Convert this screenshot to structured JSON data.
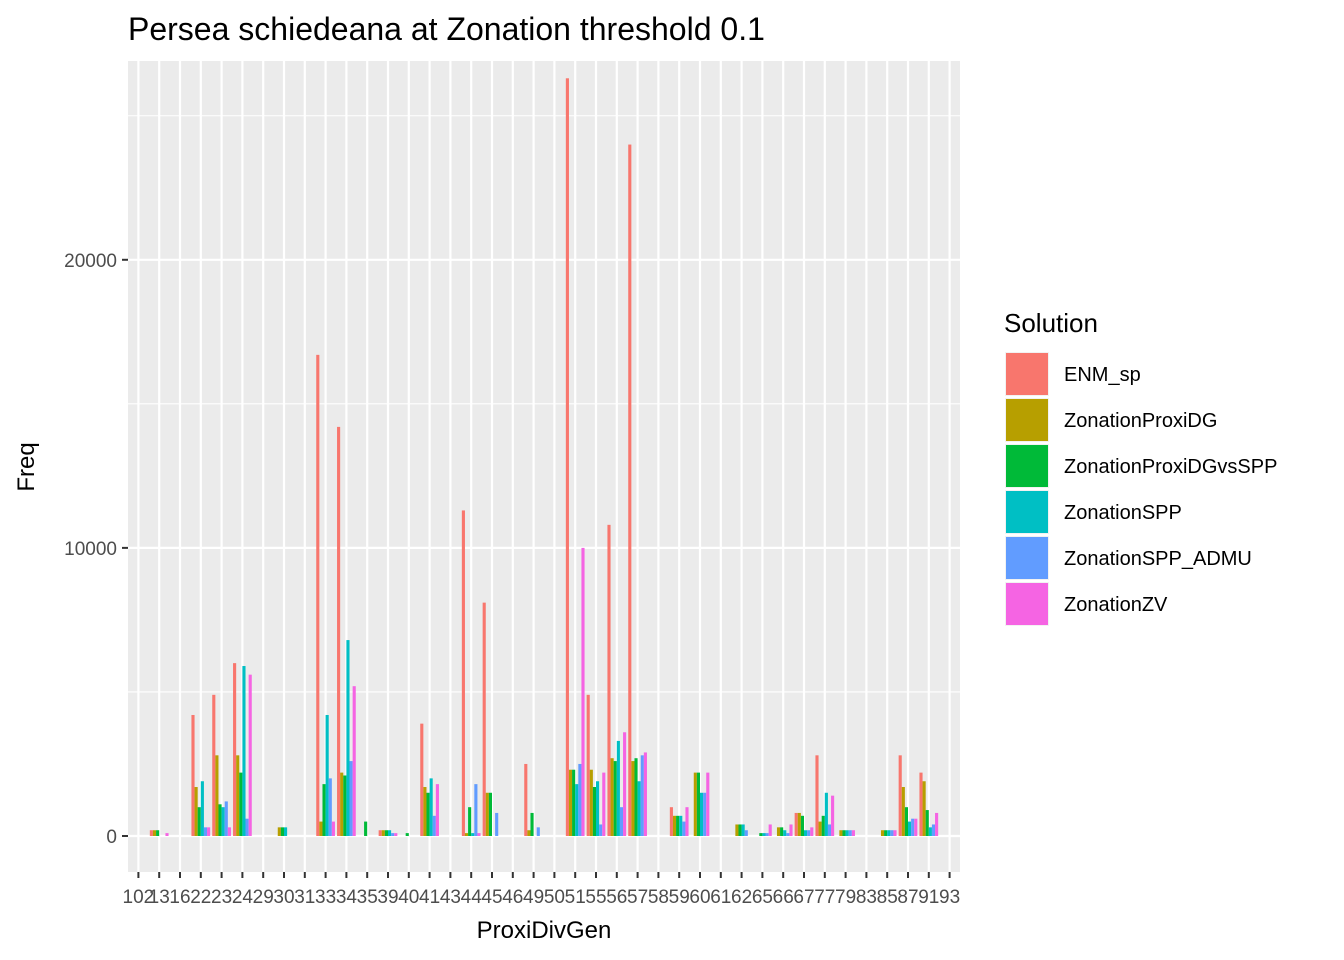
{
  "chart_data": {
    "type": "bar",
    "title": "Persea schiedeana at Zonation threshold 0.1",
    "xlabel": "ProxiDivGen",
    "ylabel": "Freq",
    "ylim": [
      -1250,
      26900
    ],
    "y_ticks": [
      0,
      10000,
      20000
    ],
    "grid": true,
    "legend_title": "Solution",
    "legend_position": "right",
    "categories": [
      "102",
      "13",
      "16",
      "22",
      "23",
      "24",
      "29",
      "30",
      "31",
      "33",
      "34",
      "35",
      "39",
      "40",
      "41",
      "43",
      "44",
      "45",
      "46",
      "49",
      "50",
      "51",
      "55",
      "56",
      "57",
      "58",
      "59",
      "60",
      "61",
      "62",
      "65",
      "66",
      "67",
      "77",
      "79",
      "83",
      "85",
      "87",
      "91",
      "93"
    ],
    "series": [
      {
        "name": "ENM_sp",
        "color": "#F8766D",
        "values": [
          0,
          200,
          0,
          4200,
          4900,
          6000,
          0,
          0,
          0,
          16700,
          14200,
          0,
          200,
          0,
          3900,
          0,
          11300,
          8100,
          0,
          2500,
          0,
          26300,
          4900,
          10800,
          24000,
          0,
          1000,
          0,
          0,
          0,
          0,
          0,
          800,
          2800,
          0,
          0,
          0,
          2800,
          2200,
          0
        ]
      },
      {
        "name": "ZonationProxiDG",
        "color": "#B79F00",
        "values": [
          0,
          200,
          0,
          1700,
          2800,
          2800,
          0,
          300,
          0,
          500,
          2200,
          0,
          200,
          0,
          1700,
          0,
          100,
          1500,
          0,
          200,
          0,
          2300,
          2300,
          2700,
          2600,
          0,
          700,
          2200,
          0,
          400,
          0,
          300,
          800,
          500,
          200,
          0,
          200,
          1700,
          1900,
          0
        ]
      },
      {
        "name": "ZonationProxiDGvsSPP",
        "color": "#00BA38",
        "values": [
          0,
          200,
          0,
          1000,
          1100,
          2200,
          0,
          300,
          0,
          1800,
          2100,
          500,
          200,
          100,
          1500,
          0,
          1000,
          1500,
          0,
          800,
          0,
          2300,
          1700,
          2600,
          2700,
          0,
          700,
          2200,
          0,
          400,
          100,
          300,
          700,
          700,
          200,
          0,
          200,
          1000,
          900,
          0
        ]
      },
      {
        "name": "ZonationSPP",
        "color": "#00BFC4",
        "values": [
          0,
          0,
          0,
          1900,
          1000,
          5900,
          0,
          300,
          0,
          4200,
          6800,
          0,
          200,
          0,
          2000,
          0,
          100,
          0,
          0,
          0,
          0,
          1800,
          1900,
          3300,
          1900,
          0,
          700,
          1500,
          0,
          400,
          100,
          200,
          200,
          1500,
          200,
          0,
          200,
          500,
          300,
          0
        ]
      },
      {
        "name": "ZonationSPP_ADMU",
        "color": "#619CFF",
        "values": [
          0,
          0,
          0,
          300,
          1200,
          600,
          0,
          0,
          0,
          2000,
          2600,
          0,
          100,
          0,
          700,
          0,
          1800,
          800,
          0,
          300,
          0,
          2500,
          400,
          1000,
          2800,
          0,
          500,
          1500,
          0,
          200,
          100,
          100,
          200,
          400,
          200,
          0,
          200,
          600,
          400,
          0
        ]
      },
      {
        "name": "ZonationZV",
        "color": "#F564E3",
        "values": [
          0,
          100,
          0,
          300,
          300,
          5600,
          0,
          0,
          0,
          500,
          5200,
          0,
          100,
          0,
          1800,
          0,
          100,
          0,
          0,
          0,
          0,
          10000,
          2200,
          3600,
          2900,
          0,
          1000,
          2200,
          0,
          0,
          400,
          400,
          300,
          1400,
          200,
          0,
          200,
          600,
          800,
          0
        ]
      }
    ]
  }
}
